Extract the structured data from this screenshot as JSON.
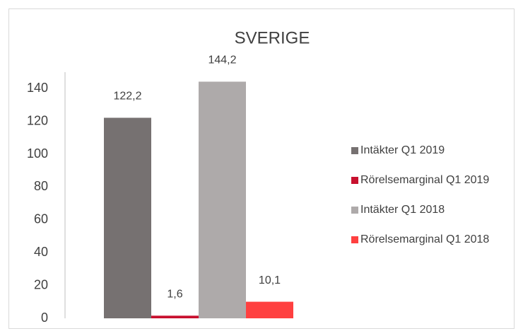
{
  "chart_data": {
    "type": "bar",
    "title": "SVERIGE",
    "categories": [
      null
    ],
    "series": [
      {
        "name": "Intäkter Q1 2019",
        "color": "#767171",
        "values": [
          122.2
        ],
        "value_labels": [
          "122,2"
        ]
      },
      {
        "name": "Rörelsemarginal Q1 2019",
        "color": "#c8102e",
        "values": [
          1.6
        ],
        "value_labels": [
          "1,6"
        ]
      },
      {
        "name": "Intäkter Q1 2018",
        "color": "#aeaaaa",
        "values": [
          144.2
        ],
        "value_labels": [
          "144,2"
        ]
      },
      {
        "name": "Rörelsemarginal Q1 2018",
        "color": "#ff4040",
        "values": [
          10.1
        ],
        "value_labels": [
          "10,1"
        ]
      }
    ],
    "ylim": [
      0,
      150
    ],
    "yticks": [
      0,
      20,
      40,
      60,
      80,
      100,
      120,
      140
    ],
    "grid": false,
    "legend": "right"
  }
}
